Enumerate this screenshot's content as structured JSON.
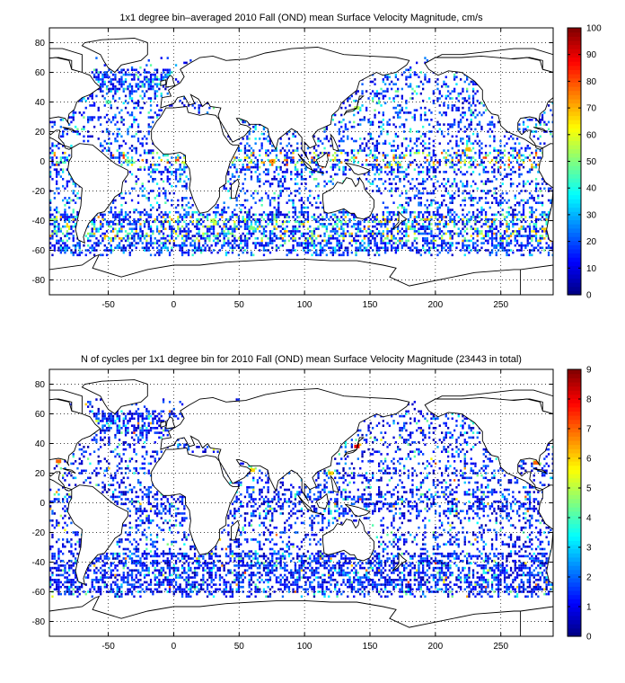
{
  "chart_data": [
    {
      "type": "heatmap",
      "title": "1x1 degree bin–averaged 2010 Fall (OND) mean Surface Velocity Magnitude, cm/s",
      "xlabel": "",
      "ylabel": "",
      "xlim": [
        -95,
        290
      ],
      "ylim": [
        -90,
        90
      ],
      "x_ticks": [
        -50,
        0,
        50,
        100,
        150,
        200,
        250
      ],
      "y_ticks": [
        80,
        60,
        40,
        20,
        0,
        -20,
        -40,
        -60,
        -80
      ],
      "grid": true,
      "colormap": "jet",
      "clim": [
        0,
        100
      ],
      "colorbar_ticks": [
        0,
        10,
        20,
        30,
        40,
        50,
        60,
        70,
        80,
        90,
        100
      ],
      "background_map": "world coastlines",
      "hotspots": [
        {
          "lon": 75,
          "lat": 0,
          "value": 75
        },
        {
          "lon": 225,
          "lat": 8,
          "value": 70
        },
        {
          "lon": 140,
          "lat": 36,
          "value": 55
        },
        {
          "lon": -35,
          "lat": 0,
          "value": 50
        },
        {
          "lon": 30,
          "lat": -40,
          "value": 55
        },
        {
          "lon": 60,
          "lat": -45,
          "value": 50
        },
        {
          "lon": -50,
          "lat": 40,
          "value": 45
        },
        {
          "lon": 280,
          "lat": 35,
          "value": 60
        }
      ]
    },
    {
      "type": "heatmap",
      "title": "N of cycles per 1x1 degree bin for 2010 Fall (OND) mean Surface Velocity Magnitude (23443 in total)",
      "xlabel": "",
      "ylabel": "",
      "xlim": [
        -95,
        290
      ],
      "ylim": [
        -90,
        90
      ],
      "x_ticks": [
        -50,
        0,
        50,
        100,
        150,
        200,
        250
      ],
      "y_ticks": [
        80,
        60,
        40,
        20,
        0,
        -20,
        -40,
        -60,
        -80
      ],
      "grid": true,
      "colormap": "jet",
      "clim": [
        0,
        9
      ],
      "colorbar_ticks": [
        0,
        1,
        2,
        3,
        4,
        5,
        6,
        7,
        8,
        9
      ],
      "background_map": "world coastlines",
      "total_count": 23443,
      "hotspots": [
        {
          "lon": 140,
          "lat": 38,
          "value": 8
        },
        {
          "lon": -88,
          "lat": 28,
          "value": 7
        },
        {
          "lon": 277,
          "lat": 27,
          "value": 7
        },
        {
          "lon": 60,
          "lat": 22,
          "value": 6
        },
        {
          "lon": 120,
          "lat": 20,
          "value": 6
        }
      ]
    }
  ]
}
